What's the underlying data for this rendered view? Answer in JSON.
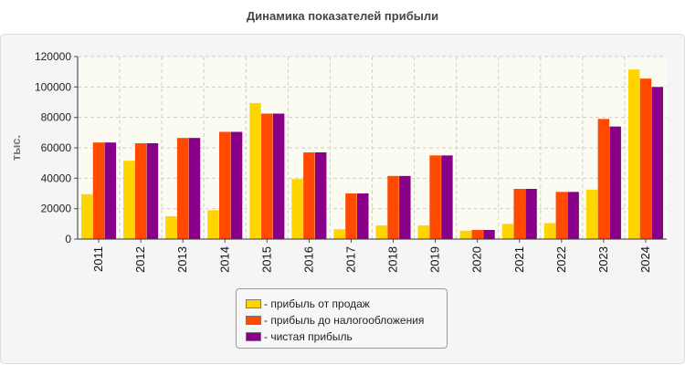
{
  "chart_data": {
    "type": "bar",
    "title": "Динамика показателей прибыли",
    "ylabel": "тыс.",
    "xlabel": "",
    "ylim": [
      0,
      120000
    ],
    "yticks": [
      "0",
      "20000",
      "40000",
      "60000",
      "80000",
      "100000",
      "120000"
    ],
    "categories": [
      "2011",
      "2012",
      "2013",
      "2014",
      "2015",
      "2016",
      "2017",
      "2018",
      "2019",
      "2020",
      "2021",
      "2022",
      "2023",
      "2024"
    ],
    "series": [
      {
        "name": "- прибыль от продаж",
        "color": "#ffd500",
        "values": [
          29500,
          51500,
          15000,
          19000,
          89500,
          39500,
          6500,
          9000,
          9000,
          5500,
          10000,
          10500,
          32500,
          111500
        ]
      },
      {
        "name": "- прибыль до налогообложения",
        "color": "#ff4a00",
        "values": [
          63500,
          63000,
          66500,
          70500,
          82500,
          57000,
          30000,
          41500,
          55000,
          6000,
          33000,
          31000,
          79000,
          105500
        ]
      },
      {
        "name": "- чистая прибыль",
        "color": "#880088",
        "values": [
          63500,
          63000,
          66500,
          70500,
          82500,
          57000,
          30000,
          41500,
          55000,
          6000,
          33000,
          31000,
          74000,
          100000
        ]
      }
    ],
    "grid": true,
    "legend_position": "bottom-center"
  }
}
